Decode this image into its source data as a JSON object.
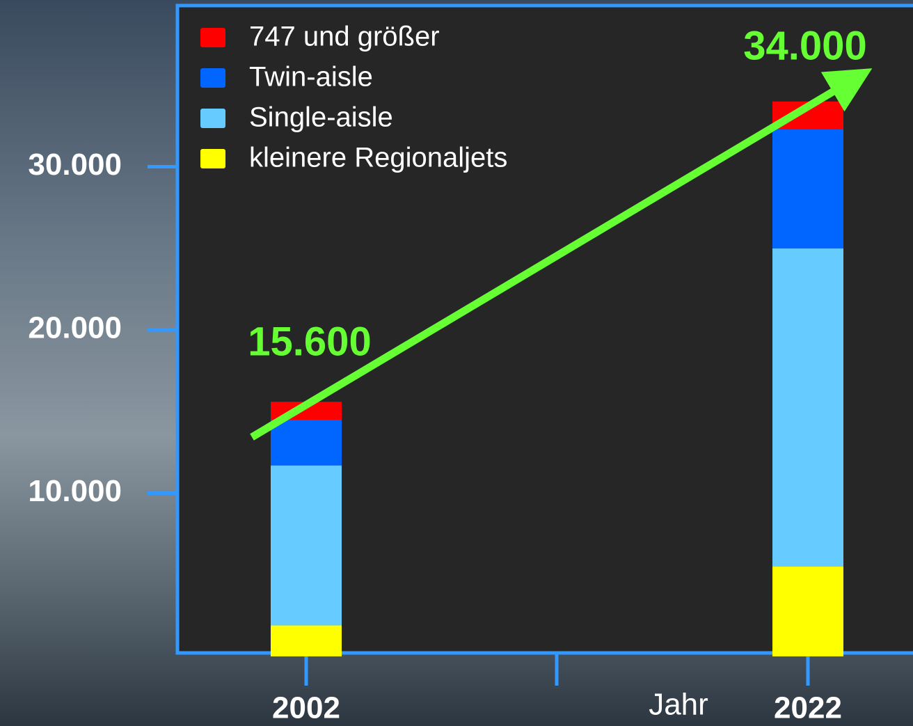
{
  "chart_data": {
    "type": "stacked-bar",
    "categories": [
      "2002",
      "2022"
    ],
    "x_label": "Jahr",
    "series": [
      {
        "name": "kleinere Regionaljets",
        "color": "#ffff00",
        "values": [
          1900,
          5500
        ]
      },
      {
        "name": "Single-aisle",
        "color": "#66ccff",
        "values": [
          9800,
          19500
        ]
      },
      {
        "name": "Twin-aisle",
        "color": "#0066ff",
        "values": [
          2800,
          7300
        ]
      },
      {
        "name": "747 und größer",
        "color": "#ff0000",
        "values": [
          1100,
          1700
        ]
      }
    ],
    "ylim": [
      0,
      40000
    ],
    "yticks": [
      {
        "value": 10000,
        "label": "10.000"
      },
      {
        "value": 20000,
        "label": "20.000"
      },
      {
        "value": 30000,
        "label": "30.000"
      }
    ],
    "annotations": [
      {
        "text": "15.600",
        "color": "#66ff33"
      },
      {
        "text": "34.000",
        "color": "#66ff33"
      }
    ]
  }
}
